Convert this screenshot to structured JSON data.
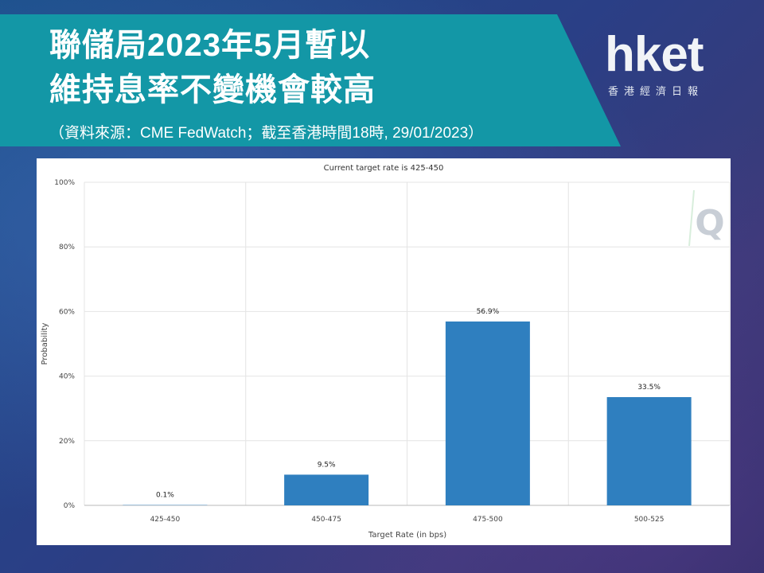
{
  "header": {
    "title_line1": "聯儲局2023年5月暫以",
    "title_line2": "維持息率不變機會較高",
    "source": "（資料來源：CME FedWatch；截至香港時間18時, 29/01/2023）"
  },
  "logo": {
    "word": "hket",
    "sub": "香港經濟日報"
  },
  "watermark": {
    "letter": "Q"
  },
  "colors": {
    "bar": "#2f7fbf",
    "banner": "#1397a6"
  },
  "chart_data": {
    "type": "bar",
    "title": "Current target rate is 425-450",
    "xlabel": "Target Rate (in bps)",
    "ylabel": "Probability",
    "categories": [
      "425-450",
      "450-475",
      "475-500",
      "500-525"
    ],
    "values": [
      0.1,
      9.5,
      56.9,
      33.5
    ],
    "data_labels": [
      "0.1%",
      "9.5%",
      "56.9%",
      "33.5%"
    ],
    "y_ticks": [
      "0%",
      "20%",
      "40%",
      "60%",
      "80%",
      "100%"
    ],
    "ylim": [
      0,
      100
    ],
    "grid": true
  }
}
